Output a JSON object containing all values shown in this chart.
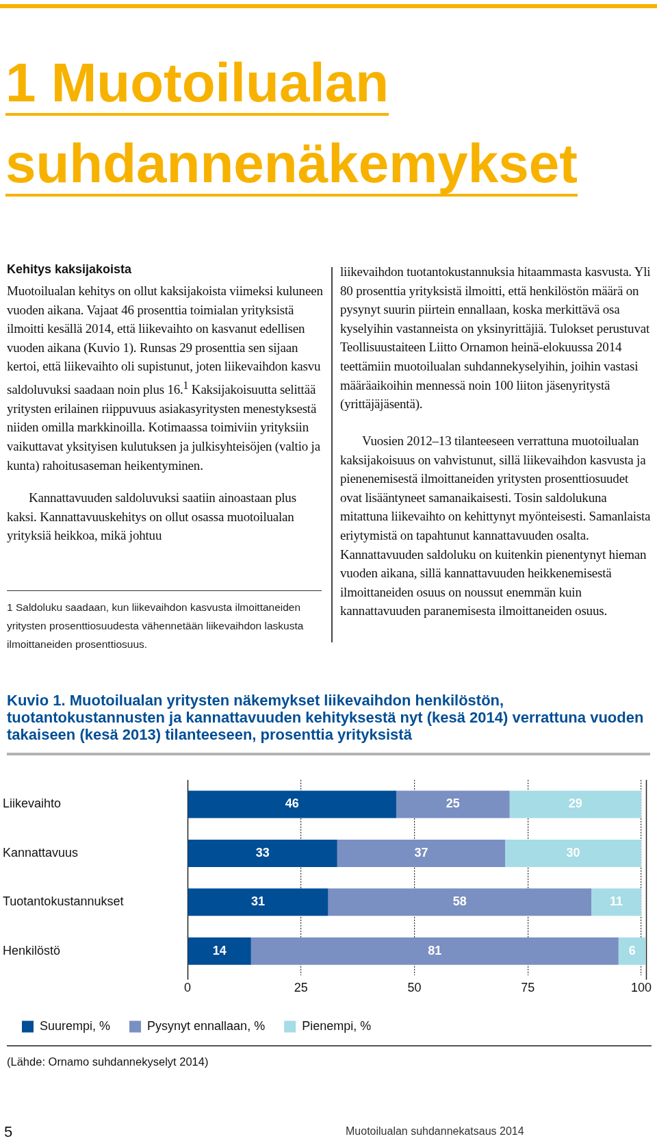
{
  "chart_data": {
    "type": "bar",
    "orientation": "horizontal",
    "stacked": true,
    "title": "Kuvio 1. Muotoilualan yritysten näkemykset liikevaihdon henkilöstön, tuotantokustannusten ja kannattavuuden kehityksestä nyt (kesä 2014) verrattuna vuoden takaiseen (kesä 2013) tilanteeseen, prosenttia yrityksistä",
    "categories": [
      "Liikevaihto",
      "Kannattavuus",
      "Tuotantokustannukset",
      "Henkilöstö"
    ],
    "series": [
      {
        "name": "Suurempi, %",
        "color": "#004e95",
        "values": [
          46,
          33,
          31,
          14
        ]
      },
      {
        "name": "Pysynyt ennallaan, %",
        "color": "#7a8fc2",
        "values": [
          25,
          37,
          58,
          81
        ]
      },
      {
        "name": "Pienempi, %",
        "color": "#a5dce6",
        "values": [
          29,
          30,
          11,
          6
        ]
      }
    ],
    "xlim": [
      0,
      101
    ],
    "xticks": [
      0,
      25,
      50,
      75,
      100
    ],
    "grid": "x",
    "legend": "bottom",
    "data_labels": true,
    "annotations": [
      "1 Muotoilualan suhdannenäkemykset",
      "Kehitys kaksijakoista",
      "Muotoilualan kehitys on ollut kaksijakoista viimeksi kuluneen vuoden aikana. Vajaat 46 prosenttia toimialan yrityksistä ilmoitti kesällä 2014, että liikevaihto on kasvanut edellisen vuoden aikana (Kuvio 1). Runsas 29 prosenttia sen sijaan kertoi, että liikevaihto oli supistunut, joten liikevaihdon kasvu saldoluvuksi saadaan noin plus 16.$^{1}$ Kaksijakoisuutta selittää yritysten erilainen riippuvuus asiakasyritysten menestyksestä niiden omilla markkinoilla. Kotimaassa toimiviin yrityksiin vaikuttavat yksityisen kulutuksen ja julkisyhteisöjen (valtio ja kunta) rahoitusaseman heikentyminen.",
      "Kannattavuuden saldoluvuksi saatiin ainoastaan plus kaksi. Kannattavuuskehitys on ollut osassa muotoilualan yrityksiä heikkoa, mikä johtuu",
      "1 Saldoluku saadaan, kun liikevaihdon kasvusta ilmoittaneiden yritysten prosenttiosuudesta vähennetään liikevaihdon laskusta ilmoittaneiden prosenttiosuus.",
      "liikevaihdon tuotantokustannuksia hitaammasta kasvusta. Yli 80 prosenttia yrityksistä ilmoitti, että henkilöstön määrä on pysynyt suurin piirtein ennallaan, koska merkittävä osa kyselyihin vastanneista on yksinyrittäjiä. Tulokset perustuvat Teollisuustaiteen Liitto Ornamon heinä-elokuussa 2014 teettämiin muotoilualan suhdannekyselyihin, joihin vastasi määräaikoihin mennessä noin 100 liiton jäsenyritystä (yrittäjäjäsentä).",
      "Vuosien 2012–13 tilanteeseen verrattuna muotoilualan kaksijakoisuus on vahvistunut, sillä liikevaihdon kasvusta ja pienenemisestä ilmoittaneiden yritysten prosenttiosuudet ovat lisääntyneet samanaikaisesti. Tosin saldolukuna mitattuna liikevaihto on kehittynyt myönteisesti. Samanlaista eriytymistä on tapahtunut kannattavuuden osalta. Kannattavuuden saldoluku on kuitenkin pienentynyt hieman vuoden aikana, sillä kannattavuuden heikkenemisestä ilmoittaneiden osuus on noussut enemmän kuin kannattavuuden paranemisesta ilmoittaneiden osuus.",
      "(Lähde: Ornamo suhdannekyselyt 2014)",
      "5",
      "Muotoilualan suhdannekatsaus 2014"
    ]
  }
}
